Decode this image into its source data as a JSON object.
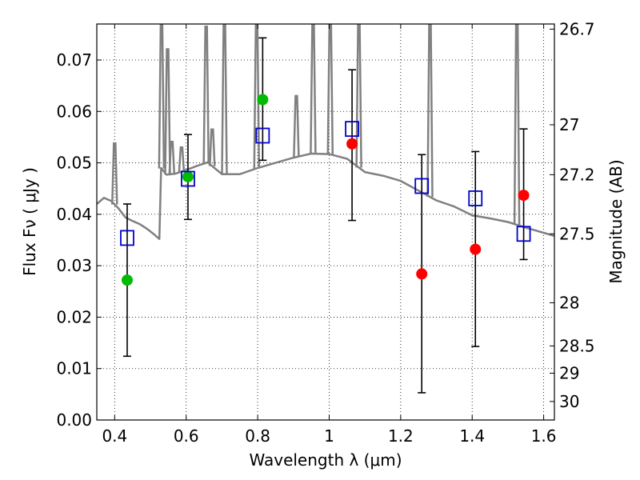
{
  "chart_data": {
    "type": "scatter",
    "xlabel": "Wavelength  λ (μm)",
    "ylabel": "Flux  Fν  ( μJy )",
    "y2label": "Magnitude (AB)",
    "xlim": [
      0.35,
      1.63
    ],
    "ylim": [
      0.0,
      0.077
    ],
    "grid": true,
    "xticks": [
      0.4,
      0.6,
      0.8,
      1.0,
      1.2,
      1.4,
      1.6
    ],
    "xtick_labels": [
      "0.4",
      "0.6",
      "0.8",
      "1",
      "1.2",
      "1.4",
      "1.6"
    ],
    "yticks": [
      0.0,
      0.01,
      0.02,
      0.03,
      0.04,
      0.05,
      0.06,
      0.07
    ],
    "ytick_labels": [
      "0.00",
      "0.01",
      "0.02",
      "0.03",
      "0.04",
      "0.05",
      "0.06",
      "0.07"
    ],
    "y2ticks": [
      {
        "label": "26.7",
        "flux": 0.076
      },
      {
        "label": "27",
        "flux": 0.0574
      },
      {
        "label": "27.2",
        "flux": 0.0477
      },
      {
        "label": "27.5",
        "flux": 0.0362
      },
      {
        "label": "28",
        "flux": 0.0228
      },
      {
        "label": "28.5",
        "flux": 0.0144
      },
      {
        "label": "29",
        "flux": 0.0091
      },
      {
        "label": "30",
        "flux": 0.0036
      }
    ],
    "colors": {
      "model": "#808080",
      "green_points": "#00bb00",
      "red_points": "#ff0000",
      "squares": "#0000cc",
      "errorbars": "#000000"
    },
    "series": [
      {
        "name": "observed_flux_green",
        "marker": "circle",
        "x": [
          0.435,
          0.605,
          0.814
        ],
        "y": [
          0.0272,
          0.0473,
          0.0623
        ]
      },
      {
        "name": "observed_flux_red",
        "marker": "circle",
        "x": [
          1.064,
          1.259,
          1.409,
          1.544
        ],
        "y": [
          0.0537,
          0.0284,
          0.0332,
          0.0437
        ]
      },
      {
        "name": "model_band_flux",
        "marker": "open-square",
        "x": [
          0.435,
          0.605,
          0.814,
          1.064,
          1.259,
          1.409,
          1.544
        ],
        "y": [
          0.0354,
          0.0469,
          0.0553,
          0.0566,
          0.0455,
          0.0431,
          0.0362
        ]
      }
    ],
    "errorbars": [
      {
        "x": 0.435,
        "low": 0.0124,
        "high": 0.042
      },
      {
        "x": 0.605,
        "low": 0.039,
        "high": 0.0555
      },
      {
        "x": 0.814,
        "low": 0.0505,
        "high": 0.0743
      },
      {
        "x": 1.064,
        "low": 0.0388,
        "high": 0.0681
      },
      {
        "x": 1.259,
        "low": 0.0053,
        "high": 0.0516
      },
      {
        "x": 1.409,
        "low": 0.0143,
        "high": 0.0522
      },
      {
        "x": 1.544,
        "low": 0.0312,
        "high": 0.0566
      }
    ],
    "model_spectrum": {
      "name": "model_sed",
      "x": [
        0.35,
        0.37,
        0.39,
        0.41,
        0.43,
        0.45,
        0.47,
        0.49,
        0.51,
        0.525,
        0.53,
        0.545,
        0.57,
        0.6,
        0.63,
        0.66,
        0.7,
        0.75,
        0.8,
        0.85,
        0.9,
        0.95,
        1.0,
        1.05,
        1.1,
        1.15,
        1.2,
        1.25,
        1.3,
        1.35,
        1.4,
        1.45,
        1.5,
        1.55,
        1.6,
        1.63
      ],
      "y": [
        0.042,
        0.0432,
        0.0426,
        0.0412,
        0.0394,
        0.0387,
        0.0381,
        0.0372,
        0.0361,
        0.0352,
        0.049,
        0.0477,
        0.0479,
        0.0486,
        0.0494,
        0.0501,
        0.0478,
        0.0478,
        0.049,
        0.05,
        0.051,
        0.0518,
        0.0517,
        0.0508,
        0.0482,
        0.0475,
        0.0465,
        0.0446,
        0.0427,
        0.0415,
        0.0398,
        0.0392,
        0.0385,
        0.0374,
        0.0364,
        0.0358
      ]
    },
    "emission_lines": [
      {
        "x": 0.4,
        "peak": 0.0538
      },
      {
        "x": 0.531,
        "peak": 0.077
      },
      {
        "x": 0.548,
        "peak": 0.0721
      },
      {
        "x": 0.56,
        "peak": 0.0541
      },
      {
        "x": 0.587,
        "peak": 0.053
      },
      {
        "x": 0.656,
        "peak": 0.0765
      },
      {
        "x": 0.673,
        "peak": 0.0565
      },
      {
        "x": 0.707,
        "peak": 0.077
      },
      {
        "x": 0.797,
        "peak": 0.077
      },
      {
        "x": 0.908,
        "peak": 0.063
      },
      {
        "x": 0.955,
        "peak": 0.077
      },
      {
        "x": 1.003,
        "peak": 0.077
      },
      {
        "x": 1.083,
        "peak": 0.077
      },
      {
        "x": 1.282,
        "peak": 0.077
      },
      {
        "x": 1.525,
        "peak": 0.077
      }
    ]
  }
}
